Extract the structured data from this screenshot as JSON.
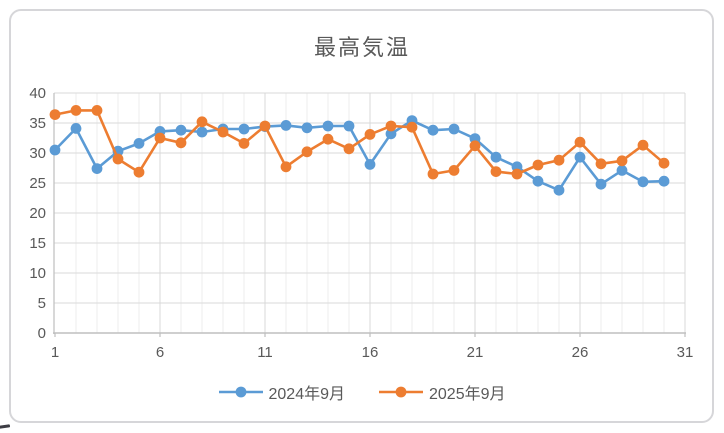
{
  "title": "最高気温",
  "legend": {
    "items": [
      {
        "label": "2024年9月",
        "color": "#5B9BD5"
      },
      {
        "label": "2025年9月",
        "color": "#ED7D31"
      }
    ],
    "position": "bottom"
  },
  "colors": {
    "series_blue": "#5B9BD5",
    "series_orange": "#ED7D31",
    "axis_text": "#595959",
    "gridline_major": "#D9D9D9",
    "gridline_minor": "#EDEDED",
    "axis_line": "#BFBFBF",
    "frame_border": "#D6D6D9",
    "title_text": "#595959"
  },
  "chart_data": {
    "type": "line",
    "title": "最高気温",
    "xlabel": "",
    "ylabel": "",
    "xlim": [
      1,
      31
    ],
    "ylim": [
      0,
      40
    ],
    "x_ticks": [
      1,
      6,
      11,
      16,
      21,
      26,
      31
    ],
    "y_ticks": [
      0,
      5,
      10,
      15,
      20,
      25,
      30,
      35,
      40
    ],
    "grid": true,
    "legend_position": "bottom",
    "marker": "circle",
    "x": [
      1,
      2,
      3,
      4,
      5,
      6,
      7,
      8,
      9,
      10,
      11,
      12,
      13,
      14,
      15,
      16,
      17,
      18,
      19,
      20,
      21,
      22,
      23,
      24,
      25,
      26,
      27,
      28,
      29,
      30
    ],
    "series": [
      {
        "name": "2024年9月",
        "color": "#5B9BD5",
        "values": [
          30.5,
          34.1,
          27.4,
          30.3,
          31.6,
          33.6,
          33.8,
          33.5,
          34.0,
          34.0,
          34.4,
          34.6,
          34.2,
          34.5,
          34.5,
          28.1,
          33.2,
          35.4,
          33.8,
          34.0,
          32.4,
          29.3,
          27.7,
          25.3,
          23.8,
          29.3,
          24.8,
          27.1,
          25.2,
          25.3
        ]
      },
      {
        "name": "2025年9月",
        "color": "#ED7D31",
        "values": [
          36.4,
          37.1,
          37.1,
          29.0,
          26.8,
          32.5,
          31.7,
          35.2,
          33.5,
          31.6,
          34.5,
          27.7,
          30.2,
          32.3,
          30.7,
          33.1,
          34.5,
          34.3,
          26.5,
          27.1,
          31.2,
          26.9,
          26.5,
          28.0,
          28.8,
          31.8,
          28.2,
          28.7,
          31.3,
          28.3
        ]
      }
    ]
  }
}
